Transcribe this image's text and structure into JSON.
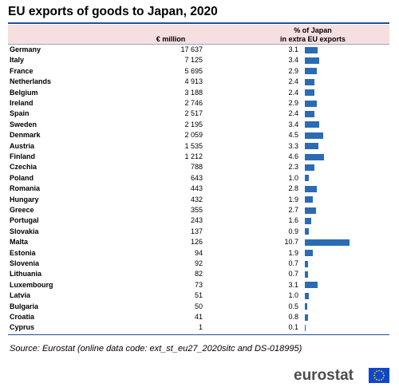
{
  "title": "EU exports of goods to Japan, 2020",
  "headers": {
    "eur": "€ million",
    "pct_line1": "% of Japan",
    "pct_line2": "in extra EU exports"
  },
  "source": "Source: Eurostat (online data code: ext_st_eu27_2020sitc and DS-018995)",
  "logo_text": "eurostat",
  "colors": {
    "bar": "#2b6bb3",
    "header_band": "#f5dfe1",
    "rule": "#1f4e9c",
    "flag": "#0e47cb",
    "stars": "#ffdd00"
  },
  "chart_data": {
    "type": "table",
    "columns": [
      "€ million",
      "% of Japan in extra EU exports"
    ],
    "rows": [
      {
        "country": "Germany",
        "eur": "17 637",
        "pct": "3.1",
        "pct_value": 3.1
      },
      {
        "country": "Italy",
        "eur": "7 125",
        "pct": "3.4",
        "pct_value": 3.4
      },
      {
        "country": "France",
        "eur": "5 695",
        "pct": "2.9",
        "pct_value": 2.9
      },
      {
        "country": "Netherlands",
        "eur": "4 913",
        "pct": "2.4",
        "pct_value": 2.4
      },
      {
        "country": "Belgium",
        "eur": "3 188",
        "pct": "2.4",
        "pct_value": 2.4
      },
      {
        "country": "Ireland",
        "eur": "2 746",
        "pct": "2.9",
        "pct_value": 2.9
      },
      {
        "country": "Spain",
        "eur": "2 517",
        "pct": "2.4",
        "pct_value": 2.4
      },
      {
        "country": "Sweden",
        "eur": "2 195",
        "pct": "3.4",
        "pct_value": 3.4
      },
      {
        "country": "Denmark",
        "eur": "2 059",
        "pct": "4.5",
        "pct_value": 4.5
      },
      {
        "country": "Austria",
        "eur": "1 535",
        "pct": "3.3",
        "pct_value": 3.3
      },
      {
        "country": "Finland",
        "eur": "1 212",
        "pct": "4.6",
        "pct_value": 4.6
      },
      {
        "country": "Czechia",
        "eur": "788",
        "pct": "2.3",
        "pct_value": 2.3
      },
      {
        "country": "Poland",
        "eur": "643",
        "pct": "1.0",
        "pct_value": 1.0
      },
      {
        "country": "Romania",
        "eur": "443",
        "pct": "2.8",
        "pct_value": 2.8
      },
      {
        "country": "Hungary",
        "eur": "432",
        "pct": "1.9",
        "pct_value": 1.9
      },
      {
        "country": "Greece",
        "eur": "355",
        "pct": "2.7",
        "pct_value": 2.7
      },
      {
        "country": "Portugal",
        "eur": "243",
        "pct": "1.6",
        "pct_value": 1.6
      },
      {
        "country": "Slovakia",
        "eur": "137",
        "pct": "0.9",
        "pct_value": 0.9
      },
      {
        "country": "Malta",
        "eur": "126",
        "pct": "10.7",
        "pct_value": 10.7
      },
      {
        "country": "Estonia",
        "eur": "94",
        "pct": "1.9",
        "pct_value": 1.9
      },
      {
        "country": "Slovenia",
        "eur": "92",
        "pct": "0.7",
        "pct_value": 0.7
      },
      {
        "country": "Lithuania",
        "eur": "82",
        "pct": "0.7",
        "pct_value": 0.7
      },
      {
        "country": "Luxembourg",
        "eur": "73",
        "pct": "3.1",
        "pct_value": 3.1
      },
      {
        "country": "Latvia",
        "eur": "51",
        "pct": "1.0",
        "pct_value": 1.0
      },
      {
        "country": "Bulgaria",
        "eur": "50",
        "pct": "0.5",
        "pct_value": 0.5
      },
      {
        "country": "Croatia",
        "eur": "41",
        "pct": "0.8",
        "pct_value": 0.8
      },
      {
        "country": "Cyprus",
        "eur": "1",
        "pct": "0.1",
        "pct_value": 0.1
      }
    ]
  }
}
